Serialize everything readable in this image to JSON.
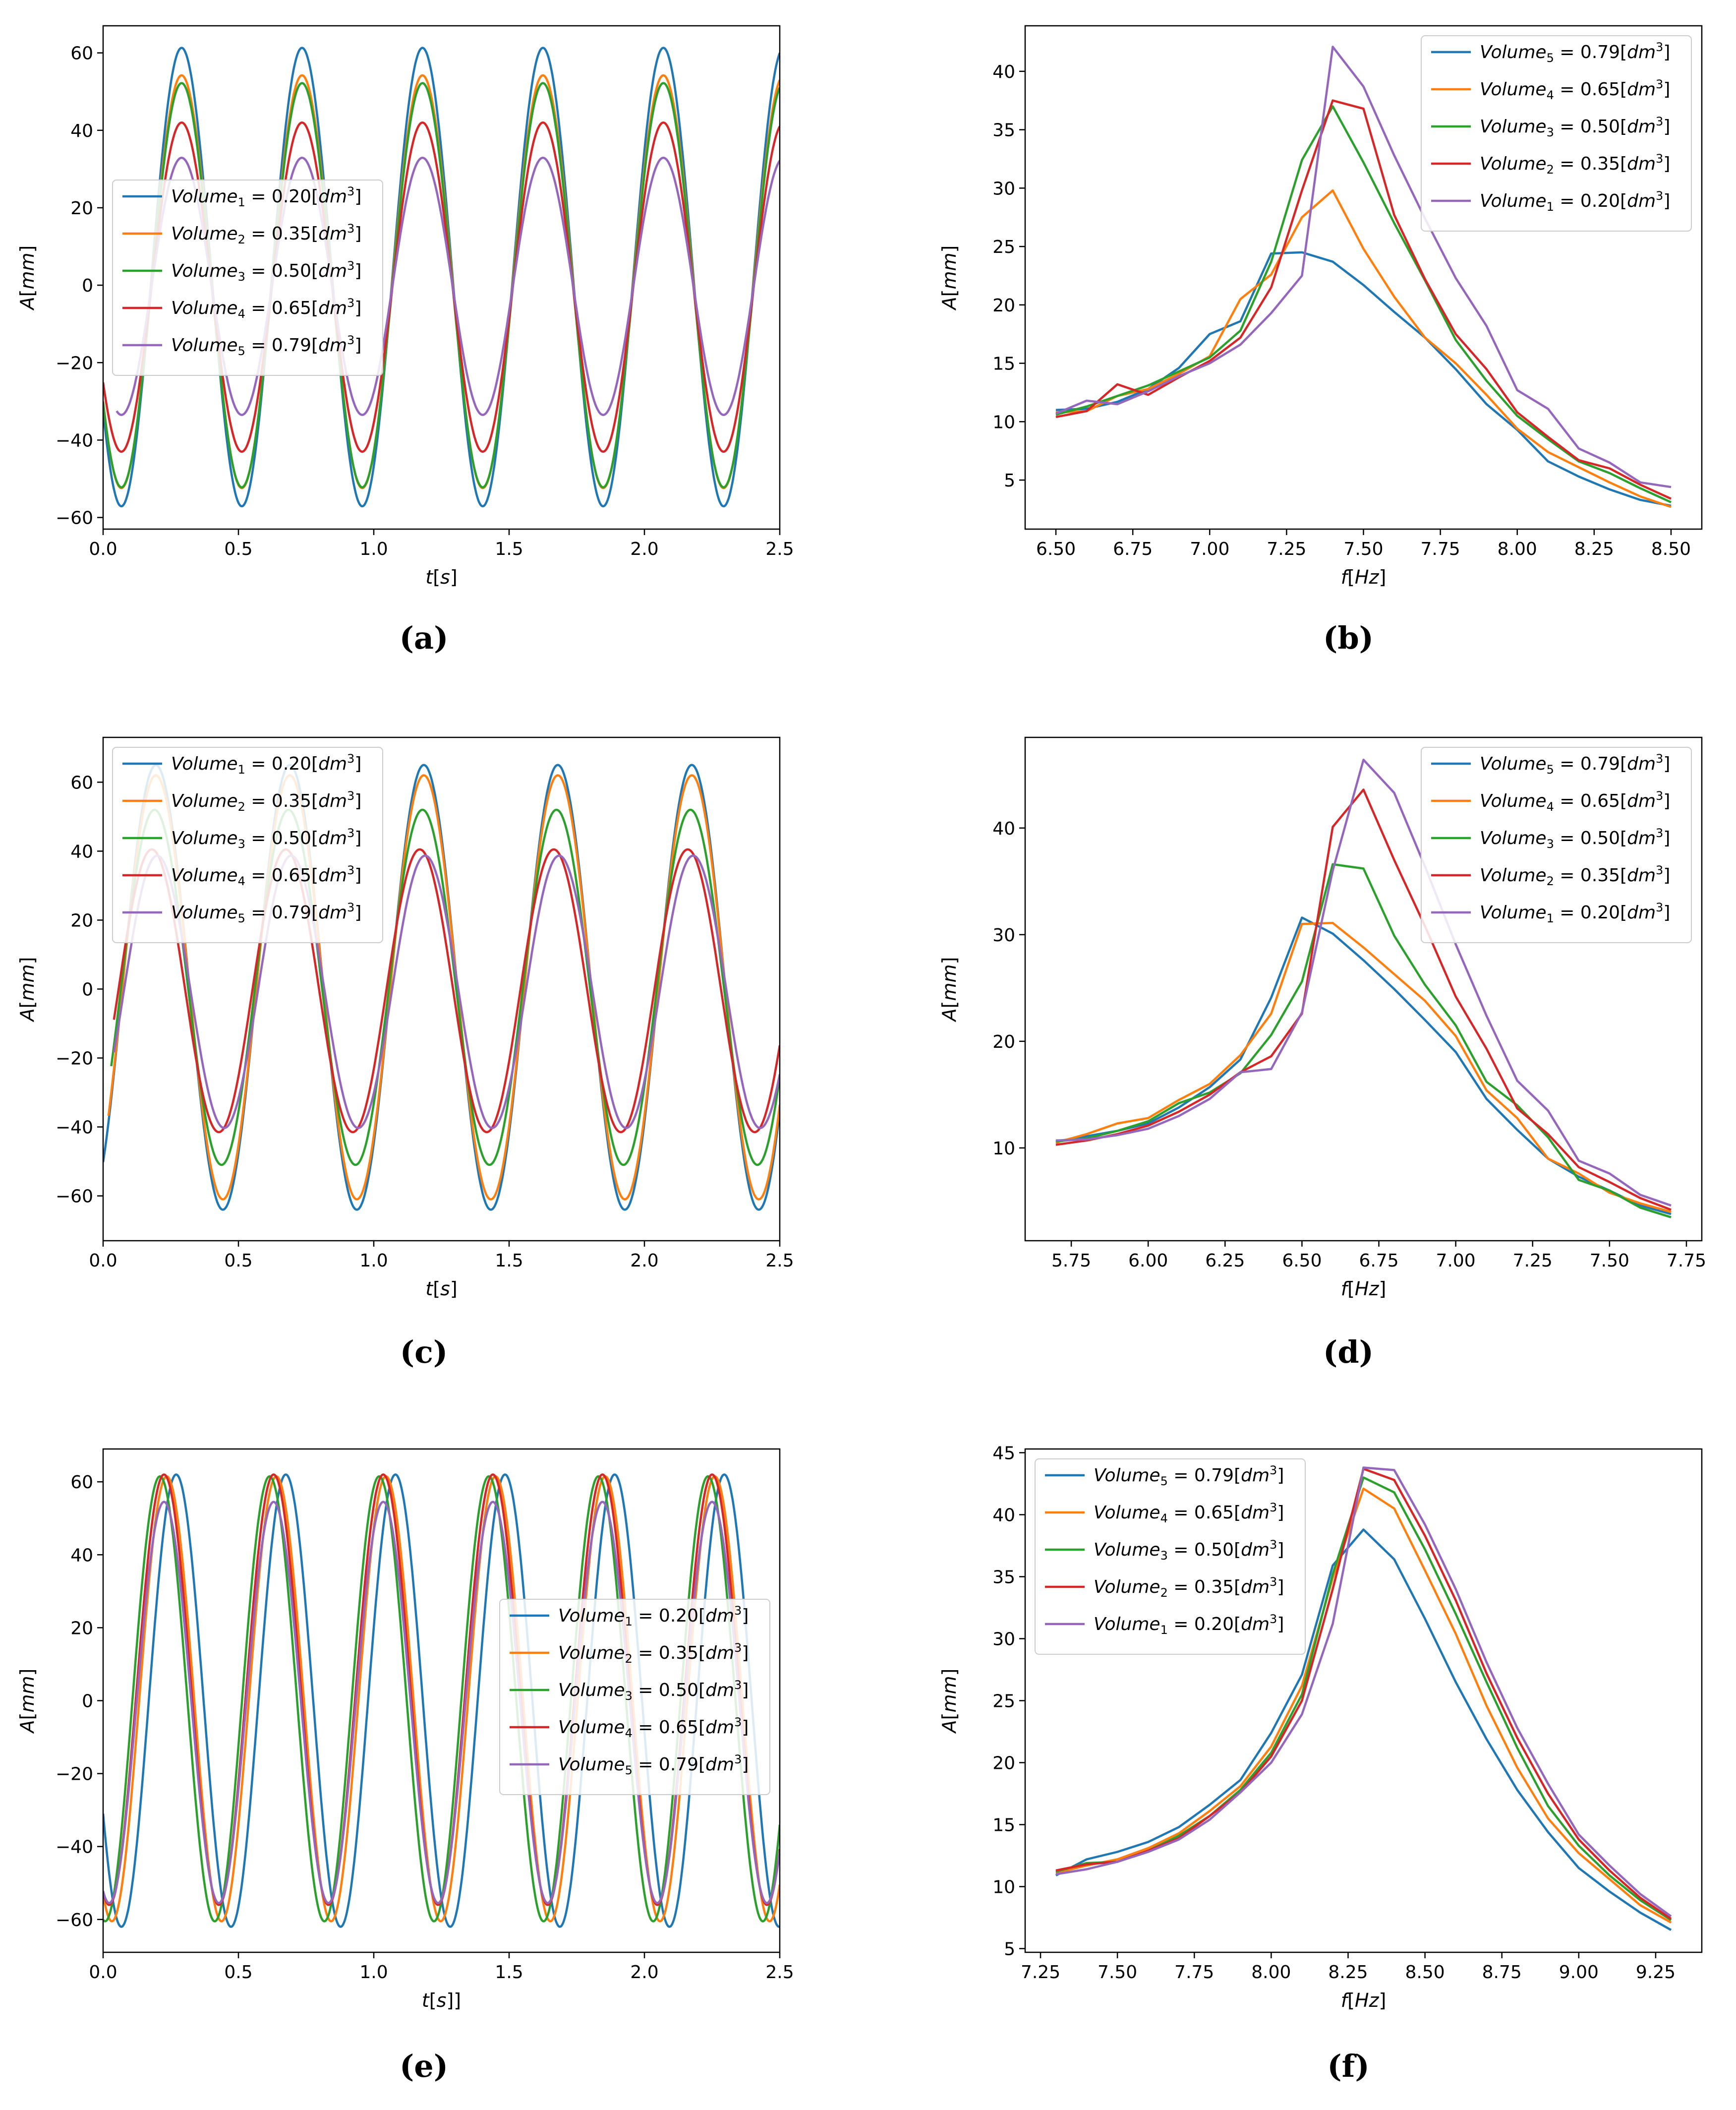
{
  "figure": {
    "panel_labels": [
      "(a)",
      "(b)",
      "(c)",
      "(d)",
      "(e)",
      "(f)"
    ]
  },
  "colors": {
    "blue": "#1f77b4",
    "orange": "#ff7f0e",
    "green": "#2ca02c",
    "red": "#d62728",
    "purple": "#9467bd"
  },
  "chart_data": [
    {
      "panel": "a",
      "type": "line",
      "xlabel": "t[s]",
      "ylabel": "A[mm]",
      "xlim": [
        0,
        2.5
      ],
      "ylim": [
        -63,
        67
      ],
      "xticks": [
        0.0,
        0.5,
        1.0,
        1.5,
        2.0,
        2.5
      ],
      "xtick_labels": [
        "0.0",
        "0.5",
        "1.0",
        "1.5",
        "2.0",
        "2.5"
      ],
      "yticks": [
        -60,
        -40,
        -20,
        0,
        20,
        40,
        60
      ],
      "ytick_labels": [
        "−60",
        "−40",
        "−20",
        "0",
        "20",
        "40",
        "60"
      ],
      "legend_position": "center-left",
      "series": [
        {
          "name": "Volume₁ = 0.20[dm³]",
          "color": "blue",
          "amplitude": 59.2,
          "offset": 2.1,
          "period": 0.445,
          "peak_time": 0.29,
          "start_time": 0.0
        },
        {
          "name": "Volume₂ = 0.35[dm³]",
          "color": "orange",
          "amplitude": 53.3,
          "offset": 0.9,
          "period": 0.445,
          "peak_time": 0.29,
          "start_time": 0.0
        },
        {
          "name": "Volume₃ = 0.50[dm³]",
          "color": "green",
          "amplitude": 52.2,
          "offset": 0.0,
          "period": 0.445,
          "peak_time": 0.29,
          "start_time": 0.0
        },
        {
          "name": "Volume₄ = 0.65[dm³]",
          "color": "red",
          "amplitude": 42.5,
          "offset": -0.5,
          "period": 0.445,
          "peak_time": 0.29,
          "start_time": 0.0
        },
        {
          "name": "Volume₅ = 0.79[dm³]",
          "color": "purple",
          "amplitude": 33.2,
          "offset": -0.3,
          "period": 0.445,
          "peak_time": 0.29,
          "start_time": 0.05
        }
      ]
    },
    {
      "panel": "b",
      "type": "line",
      "xlabel": "f[Hz]",
      "ylabel": "A[mm]",
      "xlim": [
        6.4,
        8.6
      ],
      "ylim": [
        0.8,
        43.9
      ],
      "xticks": [
        6.5,
        6.75,
        7.0,
        7.25,
        7.5,
        7.75,
        8.0,
        8.25,
        8.5
      ],
      "xtick_labels": [
        "6.50",
        "6.75",
        "7.00",
        "7.25",
        "7.50",
        "7.75",
        "8.00",
        "8.25",
        "8.50"
      ],
      "yticks": [
        5,
        10,
        15,
        20,
        25,
        30,
        35,
        40
      ],
      "ytick_labels": [
        "5",
        "10",
        "15",
        "20",
        "25",
        "30",
        "35",
        "40"
      ],
      "legend_position": "top-right",
      "x": [
        6.5,
        6.6,
        6.7,
        6.8,
        6.9,
        7.0,
        7.1,
        7.2,
        7.3,
        7.4,
        7.5,
        7.6,
        7.7,
        7.8,
        7.9,
        8.0,
        8.1,
        8.2,
        8.3,
        8.4,
        8.5
      ],
      "series": [
        {
          "name": "Volume₅ = 0.79[dm³]",
          "color": "blue",
          "values": [
            11.0,
            11.1,
            11.7,
            12.8,
            14.6,
            17.5,
            18.6,
            24.4,
            24.5,
            23.7,
            21.7,
            19.4,
            17.2,
            14.5,
            11.5,
            9.3,
            6.6,
            5.3,
            4.2,
            3.3,
            2.8
          ]
        },
        {
          "name": "Volume₄ = 0.65[dm³]",
          "color": "orange",
          "values": [
            10.8,
            10.9,
            12.2,
            12.8,
            14.1,
            15.6,
            20.5,
            22.6,
            27.5,
            29.8,
            24.8,
            20.7,
            17.2,
            15.0,
            12.3,
            9.4,
            7.4,
            6.1,
            4.8,
            3.6,
            2.7
          ]
        },
        {
          "name": "Volume₃ = 0.50[dm³]",
          "color": "green",
          "values": [
            10.6,
            11.3,
            12.2,
            13.1,
            14.3,
            15.5,
            17.8,
            23.7,
            32.4,
            37.0,
            32.2,
            27.0,
            22.1,
            17.0,
            13.5,
            10.5,
            8.5,
            6.6,
            5.6,
            4.3,
            3.1
          ]
        },
        {
          "name": "Volume₂ = 0.35[dm³]",
          "color": "red",
          "values": [
            10.4,
            10.9,
            13.2,
            12.3,
            13.8,
            15.2,
            17.2,
            21.5,
            29.8,
            37.5,
            36.8,
            27.7,
            22.2,
            17.5,
            14.5,
            10.8,
            8.7,
            6.7,
            6.0,
            4.6,
            3.4
          ]
        },
        {
          "name": "Volume₁ = 0.20[dm³]",
          "color": "purple",
          "values": [
            10.7,
            11.8,
            11.5,
            12.6,
            13.9,
            15.0,
            16.6,
            19.3,
            22.5,
            42.1,
            38.7,
            32.8,
            27.4,
            22.3,
            18.2,
            12.7,
            11.1,
            7.7,
            6.5,
            4.8,
            4.4
          ]
        }
      ]
    },
    {
      "panel": "c",
      "type": "line",
      "xlabel": "t[s]",
      "ylabel": "A[mm]",
      "xlim": [
        0,
        2.5
      ],
      "ylim": [
        -73,
        73
      ],
      "xticks": [
        0.0,
        0.5,
        1.0,
        1.5,
        2.0,
        2.5
      ],
      "xtick_labels": [
        "0.0",
        "0.5",
        "1.0",
        "1.5",
        "2.0",
        "2.5"
      ],
      "yticks": [
        -60,
        -40,
        -20,
        0,
        20,
        40,
        60
      ],
      "ytick_labels": [
        "−60",
        "−40",
        "−20",
        "0",
        "20",
        "40",
        "60"
      ],
      "legend_position": "top-left",
      "series": [
        {
          "name": "Volume₁ = 0.20[dm³]",
          "color": "blue",
          "amplitude": 64.5,
          "offset": 0.5,
          "period": 0.495,
          "peak_time": 0.195,
          "start_time": 0.0
        },
        {
          "name": "Volume₂ = 0.35[dm³]",
          "color": "orange",
          "amplitude": 61.5,
          "offset": 0.5,
          "period": 0.495,
          "peak_time": 0.195,
          "start_time": 0.02
        },
        {
          "name": "Volume₃ = 0.50[dm³]",
          "color": "green",
          "amplitude": 51.5,
          "offset": 0.5,
          "period": 0.495,
          "peak_time": 0.19,
          "start_time": 0.03
        },
        {
          "name": "Volume₄ = 0.65[dm³]",
          "color": "red",
          "amplitude": 41.0,
          "offset": -0.5,
          "period": 0.495,
          "peak_time": 0.18,
          "start_time": 0.04
        },
        {
          "name": "Volume₅ = 0.79[dm³]",
          "color": "purple",
          "amplitude": 39.5,
          "offset": -0.8,
          "period": 0.495,
          "peak_time": 0.2,
          "start_time": 0.04
        }
      ]
    },
    {
      "panel": "d",
      "type": "line",
      "xlabel": "f[Hz]",
      "ylabel": "A[mm]",
      "xlim": [
        5.6,
        7.8
      ],
      "ylim": [
        1.3,
        48.5
      ],
      "xticks": [
        5.75,
        6.0,
        6.25,
        6.5,
        6.75,
        7.0,
        7.25,
        7.5,
        7.75
      ],
      "xtick_labels": [
        "5.75",
        "6.00",
        "6.25",
        "6.50",
        "6.75",
        "7.00",
        "7.25",
        "7.50",
        "7.75"
      ],
      "yticks": [
        10,
        20,
        30,
        40
      ],
      "ytick_labels": [
        "10",
        "20",
        "30",
        "40"
      ],
      "legend_position": "top-right",
      "x": [
        5.7,
        5.8,
        5.9,
        6.0,
        6.1,
        6.2,
        6.3,
        6.4,
        6.5,
        6.6,
        6.7,
        6.8,
        6.9,
        7.0,
        7.1,
        7.2,
        7.3,
        7.4,
        7.5,
        7.6,
        7.7
      ],
      "series": [
        {
          "name": "Volume₅ = 0.79[dm³]",
          "color": "blue",
          "values": [
            10.6,
            11.1,
            11.6,
            12.3,
            13.8,
            15.7,
            18.3,
            24.1,
            31.6,
            30.1,
            27.6,
            24.9,
            22.0,
            19.0,
            14.6,
            11.7,
            9.0,
            7.3,
            6.0,
            4.6,
            3.8
          ]
        },
        {
          "name": "Volume₄ = 0.65[dm³]",
          "color": "orange",
          "values": [
            10.5,
            11.3,
            12.3,
            12.8,
            14.5,
            16.0,
            18.7,
            22.6,
            31.0,
            31.1,
            28.8,
            26.3,
            23.8,
            20.5,
            15.4,
            12.8,
            9.0,
            7.6,
            5.8,
            4.8,
            4.0
          ]
        },
        {
          "name": "Volume₃ = 0.50[dm³]",
          "color": "green",
          "values": [
            10.6,
            10.9,
            11.6,
            12.5,
            14.2,
            15.2,
            17.0,
            20.6,
            25.6,
            36.6,
            36.2,
            29.9,
            25.3,
            21.5,
            16.2,
            14.0,
            11.0,
            7.0,
            6.0,
            4.4,
            3.5
          ]
        },
        {
          "name": "Volume₂ = 0.35[dm³]",
          "color": "red",
          "values": [
            10.3,
            10.7,
            11.3,
            12.1,
            13.4,
            15.0,
            17.1,
            18.6,
            22.6,
            40.1,
            43.6,
            37.0,
            30.8,
            24.2,
            19.3,
            13.7,
            11.3,
            8.2,
            6.8,
            5.3,
            4.2
          ]
        },
        {
          "name": "Volume₁ = 0.20[dm³]",
          "color": "purple",
          "values": [
            10.7,
            10.8,
            11.2,
            11.8,
            13.0,
            14.6,
            17.1,
            17.4,
            22.7,
            36.0,
            46.4,
            43.3,
            36.4,
            29.1,
            22.4,
            16.3,
            13.5,
            8.8,
            7.6,
            5.6,
            4.6
          ]
        }
      ]
    },
    {
      "panel": "e",
      "type": "line",
      "xlabel": "t[s]]",
      "ylabel": "A[mm]",
      "xlim": [
        0,
        2.5
      ],
      "ylim": [
        -69,
        69
      ],
      "xticks": [
        0.0,
        0.5,
        1.0,
        1.5,
        2.0,
        2.5
      ],
      "xtick_labels": [
        "0.0",
        "0.5",
        "1.0",
        "1.5",
        "2.0",
        "2.5"
      ],
      "yticks": [
        -60,
        -40,
        -20,
        0,
        20,
        40,
        60
      ],
      "ytick_labels": [
        "−60",
        "−40",
        "−20",
        "0",
        "20",
        "40",
        "60"
      ],
      "legend_position": "center-right",
      "series": [
        {
          "name": "Volume₁ = 0.20[dm³]",
          "color": "blue",
          "amplitude": 62.0,
          "offset": 0.0,
          "period": 0.405,
          "peak_time": 0.27,
          "start_time": 0.0
        },
        {
          "name": "Volume₂ = 0.35[dm³]",
          "color": "orange",
          "amplitude": 61.0,
          "offset": 0.5,
          "period": 0.405,
          "peak_time": 0.235,
          "start_time": 0.0
        },
        {
          "name": "Volume₃ = 0.50[dm³]",
          "color": "green",
          "amplitude": 61.0,
          "offset": 0.5,
          "period": 0.405,
          "peak_time": 0.21,
          "start_time": 0.0
        },
        {
          "name": "Volume₄ = 0.65[dm³]",
          "color": "red",
          "amplitude": 59.0,
          "offset": 3.0,
          "period": 0.405,
          "peak_time": 0.225,
          "start_time": 0.0
        },
        {
          "name": "Volume₅ = 0.79[dm³]",
          "color": "purple",
          "amplitude": 55.0,
          "offset": -0.5,
          "period": 0.405,
          "peak_time": 0.225,
          "start_time": 0.0
        }
      ]
    },
    {
      "panel": "f",
      "type": "line",
      "xlabel": "f[Hz]",
      "ylabel": "A[mm]",
      "xlim": [
        7.2,
        9.4
      ],
      "ylim": [
        4.7,
        45.3
      ],
      "xticks": [
        7.25,
        7.5,
        7.75,
        8.0,
        8.25,
        8.5,
        8.75,
        9.0,
        9.25
      ],
      "xtick_labels": [
        "7.25",
        "7.50",
        "7.75",
        "8.00",
        "8.25",
        "8.50",
        "8.75",
        "9.00",
        "9.25"
      ],
      "yticks": [
        5,
        10,
        15,
        20,
        25,
        30,
        35,
        40,
        45
      ],
      "ytick_labels": [
        "5",
        "10",
        "15",
        "20",
        "25",
        "30",
        "35",
        "40",
        "45"
      ],
      "legend_position": "top-left",
      "x": [
        7.3,
        7.4,
        7.5,
        7.6,
        7.7,
        7.8,
        7.9,
        8.0,
        8.1,
        8.2,
        8.3,
        8.4,
        8.5,
        8.6,
        8.7,
        8.8,
        8.9,
        9.0,
        9.1,
        9.2,
        9.3
      ],
      "series": [
        {
          "name": "Volume₅ = 0.79[dm³]",
          "color": "blue",
          "values": [
            10.9,
            12.2,
            12.8,
            13.6,
            14.8,
            16.6,
            18.6,
            22.4,
            27.1,
            35.9,
            38.8,
            36.4,
            31.6,
            26.5,
            21.9,
            17.8,
            14.4,
            11.5,
            9.6,
            7.9,
            6.5
          ]
        },
        {
          "name": "Volume₄ = 0.65[dm³]",
          "color": "orange",
          "values": [
            11.1,
            11.7,
            12.2,
            13.1,
            14.3,
            16.1,
            18.1,
            21.3,
            26.2,
            34.9,
            42.1,
            40.5,
            35.5,
            30.4,
            24.6,
            19.6,
            15.5,
            12.7,
            10.6,
            8.5,
            7.1
          ]
        },
        {
          "name": "Volume₃ = 0.50[dm³]",
          "color": "green",
          "values": [
            11.2,
            11.9,
            12.0,
            12.9,
            14.1,
            15.7,
            17.8,
            20.8,
            25.5,
            35.2,
            43.0,
            41.8,
            37.2,
            32.0,
            26.5,
            21.2,
            16.5,
            13.3,
            10.9,
            8.9,
            7.3
          ]
        },
        {
          "name": "Volume₂ = 0.35[dm³]",
          "color": "red",
          "values": [
            11.3,
            11.8,
            12.0,
            12.9,
            13.9,
            15.7,
            17.6,
            20.5,
            25.0,
            34.0,
            43.7,
            42.8,
            38.3,
            33.1,
            27.2,
            22.0,
            17.5,
            13.8,
            11.3,
            9.1,
            7.4
          ]
        },
        {
          "name": "Volume₁ = 0.20[dm³]",
          "color": "purple",
          "values": [
            11.0,
            11.4,
            12.0,
            12.8,
            13.8,
            15.4,
            17.6,
            20.0,
            23.9,
            31.2,
            43.8,
            43.6,
            39.2,
            34.0,
            28.1,
            22.8,
            18.3,
            14.2,
            11.7,
            9.4,
            7.6
          ]
        }
      ]
    }
  ]
}
